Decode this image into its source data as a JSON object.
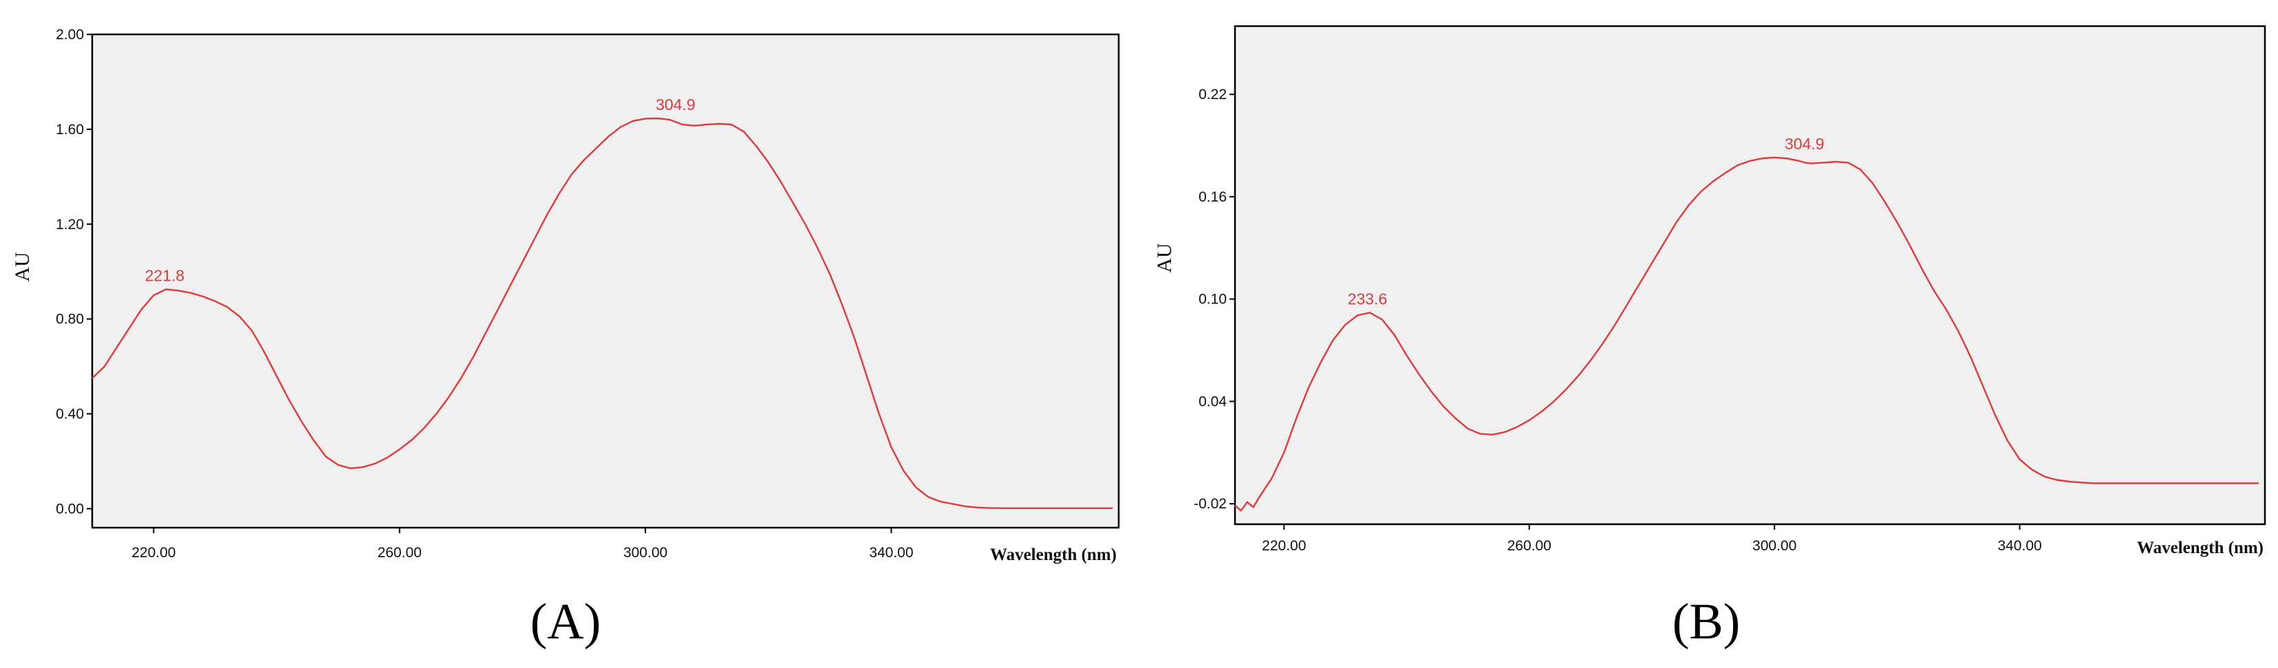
{
  "chart_data": [
    {
      "type": "line",
      "panel_label": "(A)",
      "title": "",
      "xlabel": "Wavelength (nm)",
      "ylabel": "AU",
      "xlim": [
        210,
        377
      ],
      "ylim": [
        -0.08,
        2.0
      ],
      "x_ticks": [
        220,
        260,
        300,
        340
      ],
      "x_tick_labels": [
        "220.00",
        "260.00",
        "300.00",
        "340.00"
      ],
      "y_ticks": [
        0.0,
        0.4,
        0.8,
        1.2,
        1.6,
        2.0
      ],
      "y_tick_labels": [
        "0.00",
        "0.40",
        "0.80",
        "1.20",
        "1.60",
        "2.00"
      ],
      "grid": false,
      "colors": {
        "background": "#f0f0f0",
        "line": "#e03a3a",
        "peak_label": "#e03a3a"
      },
      "series": [
        {
          "x": [
            210,
            212,
            214,
            216,
            218,
            220,
            222,
            224,
            226,
            228,
            230,
            232,
            234,
            236,
            238,
            240,
            242,
            244,
            246,
            248,
            250,
            252,
            254,
            256,
            258,
            260,
            262,
            264,
            266,
            268,
            270,
            272,
            274,
            276,
            278,
            280,
            282,
            284,
            286,
            288,
            290,
            292,
            294,
            296,
            298,
            300,
            302,
            304,
            305,
            306,
            308,
            310,
            312,
            314,
            316,
            318,
            320,
            322,
            324,
            326,
            328,
            330,
            332,
            334,
            336,
            338,
            340,
            342,
            344,
            346,
            348,
            350,
            352,
            354,
            356,
            358,
            360,
            362,
            364,
            366,
            368,
            370,
            372,
            374,
            376
          ],
          "values": [
            0.55,
            0.6,
            0.68,
            0.76,
            0.84,
            0.9,
            0.925,
            0.92,
            0.91,
            0.895,
            0.875,
            0.85,
            0.81,
            0.75,
            0.66,
            0.56,
            0.46,
            0.37,
            0.29,
            0.22,
            0.185,
            0.17,
            0.175,
            0.19,
            0.215,
            0.25,
            0.29,
            0.34,
            0.4,
            0.47,
            0.55,
            0.64,
            0.74,
            0.84,
            0.94,
            1.04,
            1.14,
            1.24,
            1.33,
            1.41,
            1.47,
            1.52,
            1.57,
            1.61,
            1.635,
            1.645,
            1.646,
            1.64,
            1.63,
            1.62,
            1.615,
            1.62,
            1.623,
            1.62,
            1.59,
            1.53,
            1.46,
            1.38,
            1.29,
            1.2,
            1.1,
            0.99,
            0.86,
            0.72,
            0.56,
            0.4,
            0.26,
            0.16,
            0.09,
            0.05,
            0.03,
            0.02,
            0.01,
            0.005,
            0.003,
            0.002,
            0.002,
            0.002,
            0.002,
            0.002,
            0.002,
            0.002,
            0.002,
            0.002,
            0.002
          ]
        }
      ],
      "annotations": [
        {
          "text": "221.8",
          "x": 221.8,
          "y": 0.925
        },
        {
          "text": "304.9",
          "x": 304.9,
          "y": 1.646
        }
      ]
    },
    {
      "type": "line",
      "panel_label": "(B)",
      "title": "",
      "xlabel": "Wavelength (nm)",
      "ylabel": "AU",
      "xlim": [
        212,
        380
      ],
      "ylim": [
        -0.032,
        0.26
      ],
      "x_ticks": [
        220,
        260,
        300,
        340
      ],
      "x_tick_labels": [
        "220.00",
        "260.00",
        "300.00",
        "340.00"
      ],
      "y_ticks": [
        -0.02,
        0.04,
        0.1,
        0.16,
        0.22
      ],
      "y_tick_labels": [
        "-0.02",
        "0.04",
        "0.10",
        "0.16",
        "0.22"
      ],
      "grid": false,
      "colors": {
        "background": "#f0f0f0",
        "line": "#e03a3a",
        "peak_label": "#e03a3a"
      },
      "series": [
        {
          "x": [
            212,
            213,
            214,
            215,
            216,
            218,
            220,
            222,
            224,
            226,
            228,
            230,
            232,
            234,
            236,
            238,
            240,
            242,
            244,
            246,
            248,
            250,
            252,
            254,
            256,
            258,
            260,
            262,
            264,
            266,
            268,
            270,
            272,
            274,
            276,
            278,
            280,
            282,
            284,
            286,
            288,
            290,
            292,
            294,
            296,
            298,
            300,
            302,
            304,
            305,
            306,
            308,
            310,
            312,
            314,
            316,
            318,
            320,
            322,
            324,
            326,
            328,
            330,
            332,
            334,
            336,
            338,
            340,
            342,
            344,
            346,
            348,
            350,
            352,
            354,
            356,
            358,
            360,
            362,
            364,
            366,
            368,
            370,
            372,
            374,
            376,
            378,
            379
          ],
          "values": [
            -0.021,
            -0.024,
            -0.019,
            -0.022,
            -0.016,
            -0.005,
            0.01,
            0.03,
            0.048,
            0.063,
            0.076,
            0.085,
            0.0905,
            0.092,
            0.088,
            0.079,
            0.067,
            0.056,
            0.046,
            0.037,
            0.03,
            0.024,
            0.021,
            0.0205,
            0.022,
            0.025,
            0.029,
            0.034,
            0.04,
            0.047,
            0.055,
            0.064,
            0.074,
            0.085,
            0.097,
            0.109,
            0.121,
            0.133,
            0.145,
            0.155,
            0.163,
            0.169,
            0.174,
            0.1785,
            0.181,
            0.1825,
            0.183,
            0.1825,
            0.181,
            0.18,
            0.1795,
            0.18,
            0.1805,
            0.18,
            0.176,
            0.168,
            0.157,
            0.145,
            0.132,
            0.118,
            0.105,
            0.094,
            0.081,
            0.066,
            0.049,
            0.032,
            0.017,
            0.006,
            0.0,
            -0.004,
            -0.006,
            -0.007,
            -0.0075,
            -0.008,
            -0.008,
            -0.008,
            -0.008,
            -0.008,
            -0.008,
            -0.008,
            -0.008,
            -0.008,
            -0.008,
            -0.008,
            -0.008,
            -0.008,
            -0.008,
            -0.008
          ]
        }
      ],
      "annotations": [
        {
          "text": "233.6",
          "x": 233.6,
          "y": 0.092
        },
        {
          "text": "304.9",
          "x": 304.9,
          "y": 0.183
        }
      ]
    }
  ]
}
